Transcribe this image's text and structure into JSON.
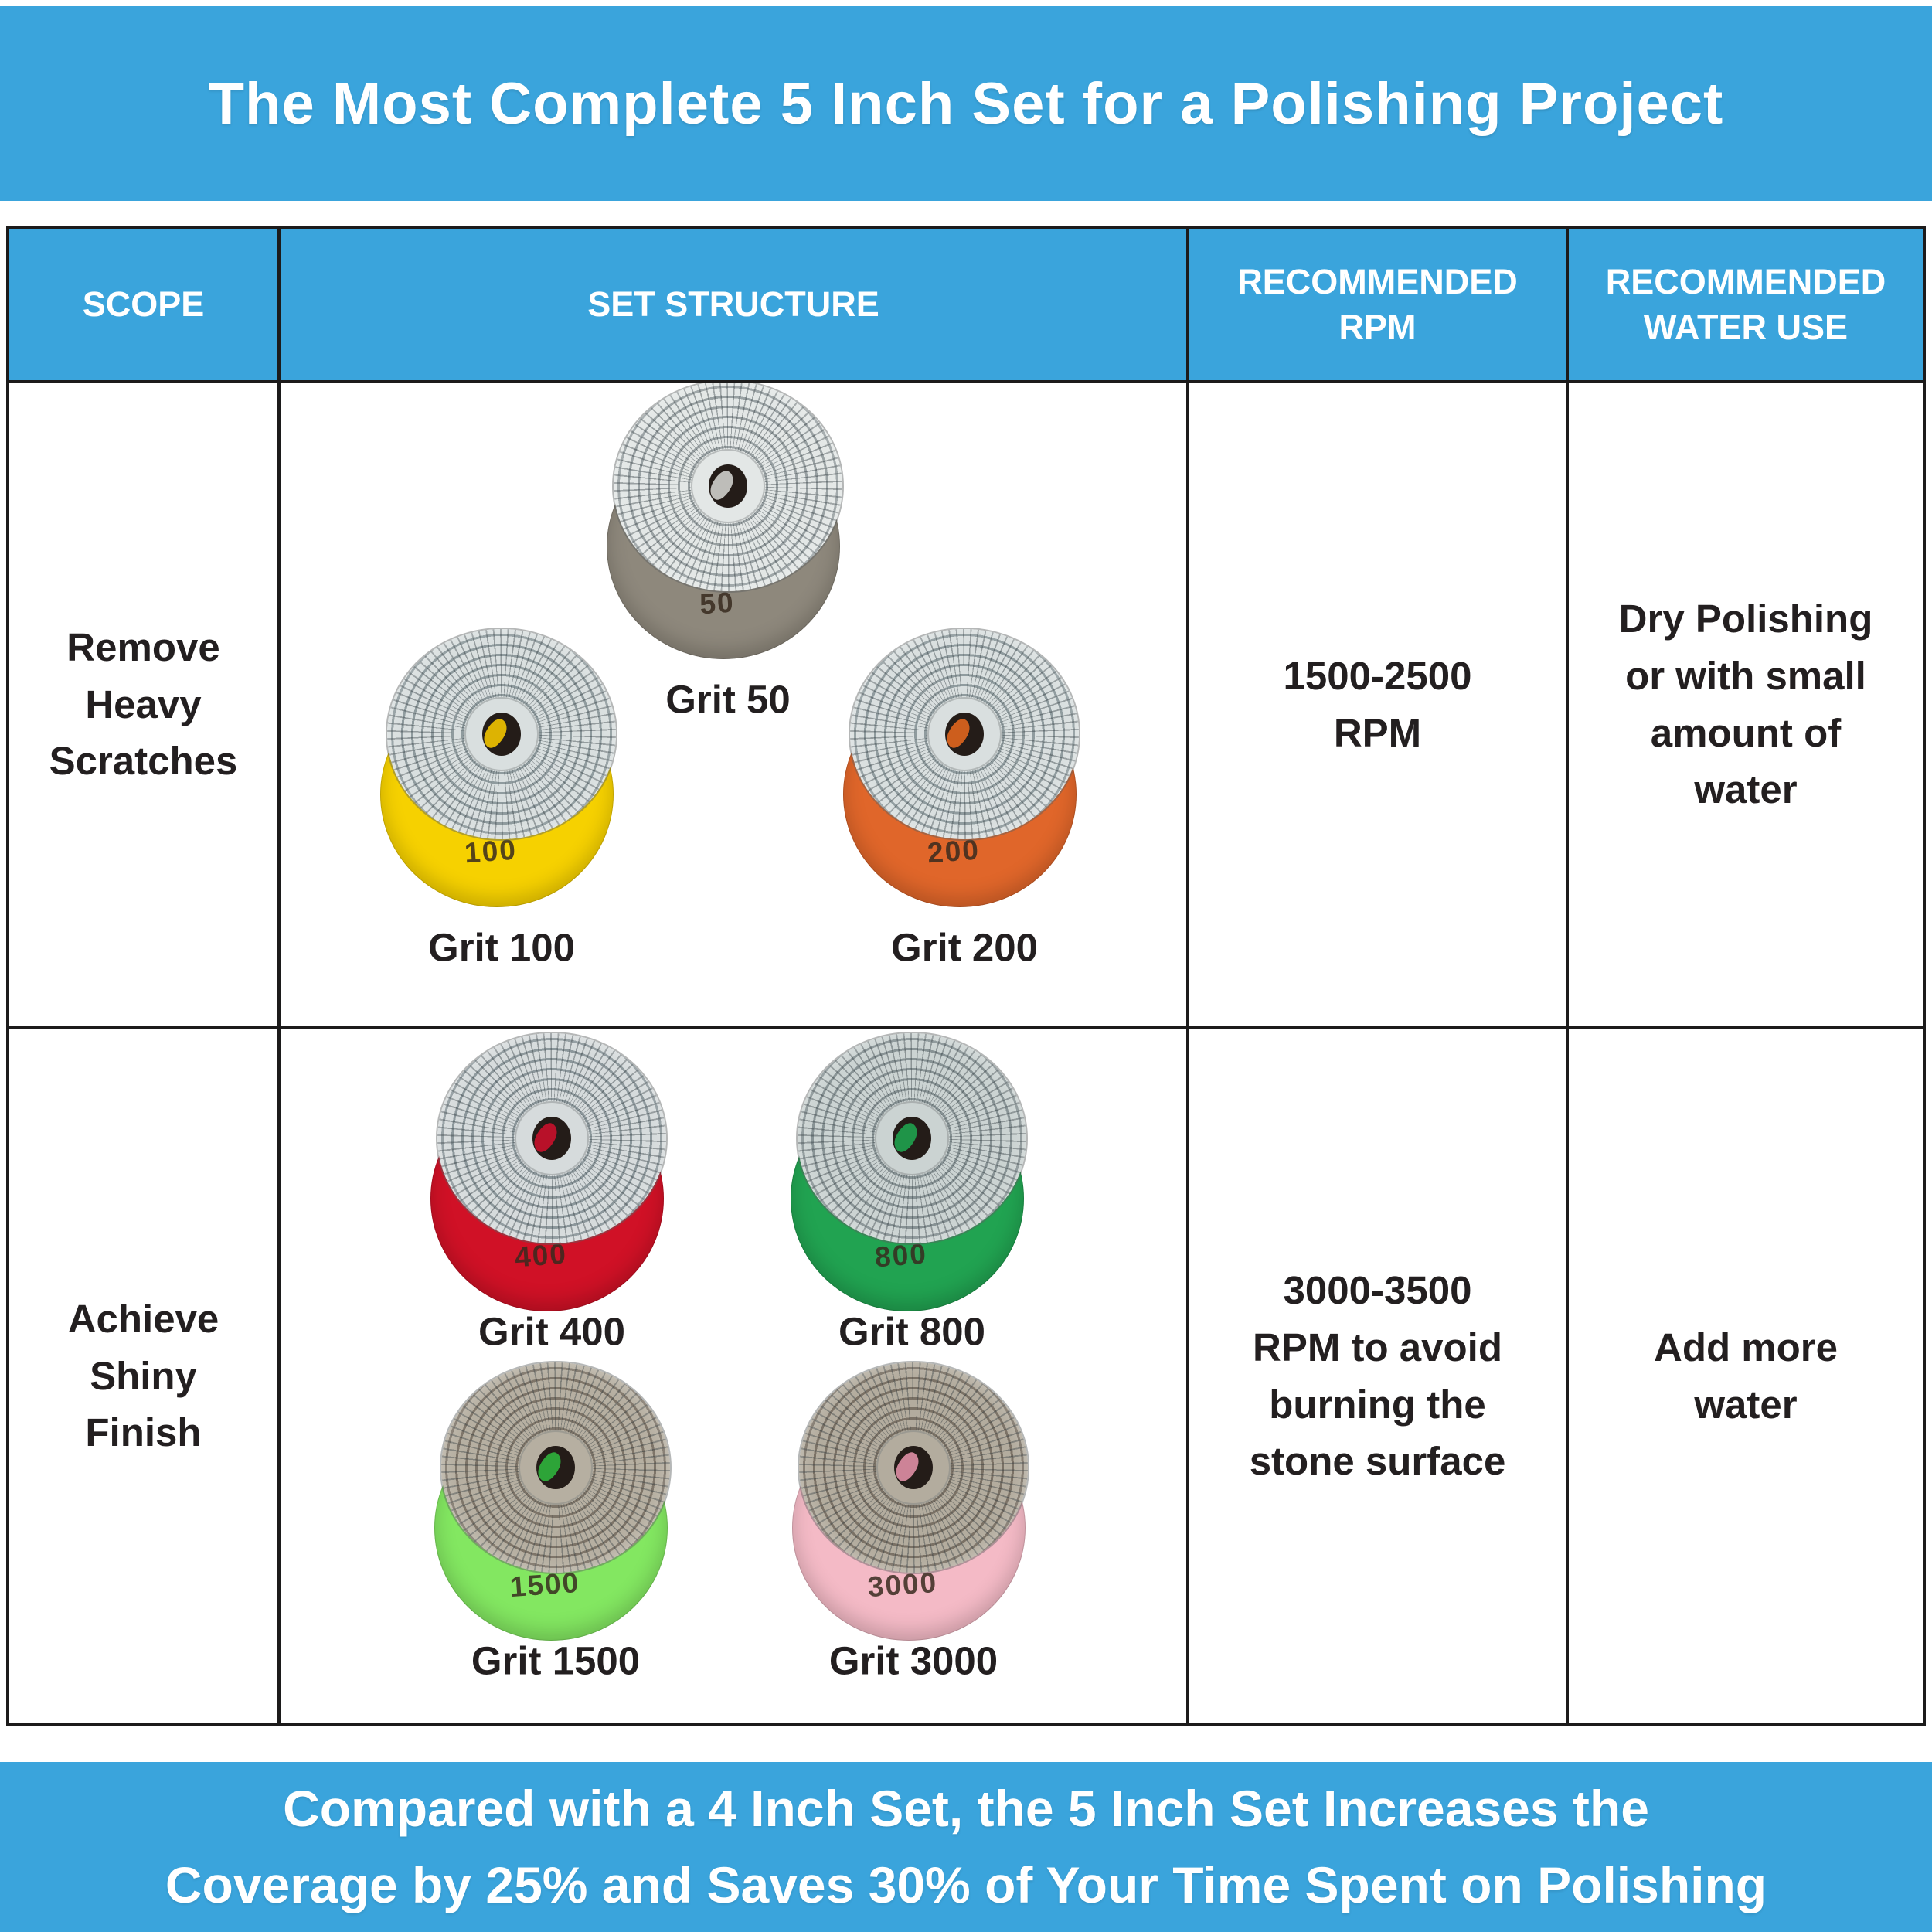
{
  "colors": {
    "banner_blue": "#3AA4DC",
    "grid_line": "#1C1B1B",
    "text_dark": "#231F20",
    "text_light": "#FFFFFF"
  },
  "banner": {
    "title": "The Most Complete 5 Inch Set for a Polishing Project"
  },
  "footer": {
    "line1": "Compared with a 4 Inch Set, the 5 Inch Set Increases the",
    "line2": "Coverage by 25% and Saves 30% of Your Time Spent on Polishing"
  },
  "table": {
    "headers": [
      "SCOPE",
      "SET STRUCTURE",
      "RECOMMENDED\nRPM",
      "RECOMMENDED\nWATER USE"
    ],
    "rows": [
      {
        "scope": "Remove\nHeavy\nScratches",
        "rpm": "1500-2500\nRPM",
        "water": "Dry Polishing\nor with small\namount of\nwater",
        "pads": [
          {
            "label": "Grit 50",
            "number": "50",
            "backing": "#8E887C",
            "tile": "#E3E7E6",
            "gap": "#99A1A3",
            "accent": "#CFCFCB"
          },
          {
            "label": "Grit 100",
            "number": "100",
            "backing": "#F6D100",
            "tile": "#D9DFDF",
            "gap": "#8F9B9E",
            "accent": "#F2C400"
          },
          {
            "label": "Grit 200",
            "number": "200",
            "backing": "#E0662A",
            "tile": "#D9DFDF",
            "gap": "#8F9B9E",
            "accent": "#E0661E"
          }
        ]
      },
      {
        "scope": "Achieve\nShiny\nFinish",
        "rpm": "3000-3500\nRPM to avoid\nburning the\nstone surface",
        "water": "Add more\nwater",
        "pads": [
          {
            "label": "Grit 400",
            "number": "400",
            "backing": "#D01126",
            "tile": "#D6DBDC",
            "gap": "#8C979B",
            "accent": "#C9112B"
          },
          {
            "label": "Grit 800",
            "number": "800",
            "backing": "#21A351",
            "tile": "#CBD3D2",
            "gap": "#879294",
            "accent": "#1FA24E"
          },
          {
            "label": "Grit 1500",
            "number": "1500",
            "backing": "#83E761",
            "tile": "#B6AFA1",
            "gap": "#7D7468",
            "accent": "#2FB43C"
          },
          {
            "label": "Grit 3000",
            "number": "3000",
            "backing": "#F4BAC6",
            "tile": "#B3AC9E",
            "gap": "#7A7165",
            "accent": "#E08FA5"
          }
        ]
      }
    ]
  }
}
